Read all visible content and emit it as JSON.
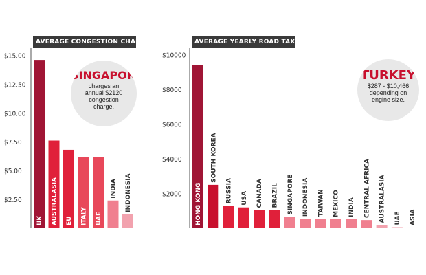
{
  "chart_data": [
    {
      "type": "bar",
      "title": "AVERAGE CONGESTION CHARGES",
      "categories": [
        "UK",
        "AUSTRALASIA",
        "EU",
        "ITALY",
        "UAE",
        "INDIA",
        "INDONESIA"
      ],
      "values": [
        14.6,
        7.6,
        6.8,
        6.15,
        6.15,
        2.4,
        1.2
      ],
      "yticks": [
        "$2.50",
        "$5.00",
        "$7.50",
        "$10.00",
        "$12.50",
        "$15.00"
      ],
      "ylim": [
        0,
        15.5
      ],
      "bar_colors": [
        "#a01535",
        "#e0203a",
        "#e0203a",
        "#e8485a",
        "#e8485a",
        "#f07f8f",
        "#f2a2ae"
      ],
      "callout": {
        "heading": "SINGAPORE",
        "text": "charges an annual $2120 congestion charge."
      }
    },
    {
      "type": "bar",
      "title": "AVERAGE YEARLY ROAD TAX",
      "categories": [
        "HONG KONG",
        "SOUTH KOREA",
        "RUSSIA",
        "USA",
        "CANADA",
        "BRAZIL",
        "SINGAPORE",
        "INDONESIA",
        "TAIWAN",
        "MEXICO",
        "INDIA",
        "CENTRAL AFRICA",
        "AUSTRALASIA",
        "UAE",
        "ASIA"
      ],
      "values": [
        9400,
        2500,
        1300,
        1200,
        1050,
        1050,
        650,
        550,
        550,
        520,
        520,
        470,
        180,
        60,
        40
      ],
      "yticks": [
        "$2000",
        "$4000",
        "$6000",
        "$8000",
        "$10000"
      ],
      "ylim": [
        0,
        10300
      ],
      "bar_colors": [
        "#a01535",
        "#c8102e",
        "#e0203a",
        "#e0203a",
        "#e0203a",
        "#e0203a",
        "#f07f8f",
        "#f07f8f",
        "#f07f8f",
        "#f07f8f",
        "#f07f8f",
        "#f07f8f",
        "#f2a2ae",
        "#f2a2ae",
        "#f2a2ae"
      ],
      "callout": {
        "heading": "TURKEY",
        "text": "$287 - $10,466 depending on engine size."
      }
    }
  ]
}
